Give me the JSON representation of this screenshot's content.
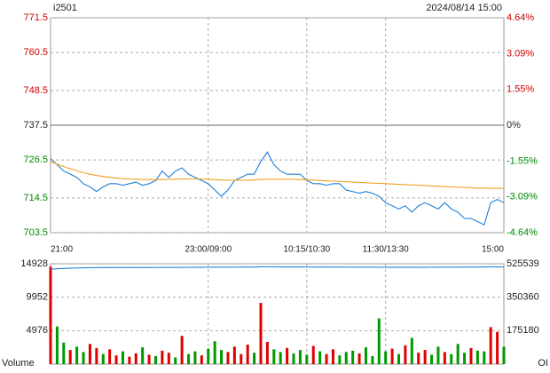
{
  "chart_data": [
    {
      "type": "line",
      "title": "i2501",
      "subtitle": "2024/08/14 15:00",
      "up_color": "#cc0000",
      "down_color": "#008800",
      "grid": true,
      "x": [
        0,
        5,
        10,
        15,
        20,
        25,
        30,
        35,
        40,
        45,
        50,
        55,
        60,
        65,
        70,
        75,
        80,
        85,
        90,
        95,
        100,
        105,
        110,
        115,
        120,
        125,
        130,
        135,
        140,
        145,
        150,
        155,
        160,
        165,
        170,
        175,
        180,
        185,
        190,
        195,
        200,
        205,
        210,
        215,
        220,
        225,
        230,
        235,
        240,
        245,
        250,
        255,
        260,
        265,
        270,
        275,
        280,
        285,
        290,
        295,
        300,
        305,
        310,
        315,
        320,
        325,
        330,
        335,
        340,
        345
      ],
      "xlim": [
        0,
        345
      ],
      "xticks": [
        {
          "value": 0,
          "label": "21:00"
        },
        {
          "value": 120,
          "label": "23:00/09:00"
        },
        {
          "value": 195,
          "label": "10:15/10:30"
        },
        {
          "value": 255,
          "label": "11:30/13:30"
        },
        {
          "value": 345,
          "label": "15:00"
        }
      ],
      "ylim": [
        703.5,
        771.5
      ],
      "yticks": [
        703.5,
        714.5,
        726.5,
        737.5,
        748.5,
        760.5,
        771.5
      ],
      "y2lim": [
        -4.64,
        4.64
      ],
      "y2ticks": [
        {
          "value": -4.64,
          "label": "-4.64%"
        },
        {
          "value": -3.09,
          "label": "-3.09%"
        },
        {
          "value": -1.55,
          "label": "-1.55%"
        },
        {
          "value": 0,
          "label": "0%"
        },
        {
          "value": 1.55,
          "label": "1.55%"
        },
        {
          "value": 3.09,
          "label": "3.09%"
        },
        {
          "value": 4.64,
          "label": "4.64%"
        }
      ],
      "series": [
        {
          "color": "#1e7fd6",
          "values": [
            727,
            725,
            723,
            722,
            721,
            719,
            718,
            716.5,
            718,
            719,
            719,
            718.5,
            719,
            719.5,
            718.5,
            719,
            720,
            723,
            721,
            723,
            724,
            722,
            721,
            720,
            719,
            717,
            715,
            717,
            720,
            721,
            722,
            722,
            726,
            729,
            725,
            723,
            722,
            722,
            722,
            720,
            719,
            719,
            718.5,
            719,
            719,
            717,
            716.5,
            716,
            716.5,
            716,
            715,
            713,
            712,
            711,
            712,
            710,
            712,
            713,
            712,
            711,
            713,
            711,
            710,
            708,
            708,
            707,
            706,
            713,
            714,
            713
          ]
        },
        {
          "color": "#f0a020",
          "values": [
            726,
            725.2,
            724.4,
            723.7,
            723.1,
            722.5,
            722,
            721.6,
            721.3,
            721,
            720.8,
            720.6,
            720.5,
            720.4,
            720.3,
            720.3,
            720.3,
            720.3,
            720.4,
            720.4,
            720.5,
            720.5,
            720.5,
            720.5,
            720.4,
            720.3,
            720.2,
            720.1,
            720.1,
            720.1,
            720.1,
            720.2,
            720.3,
            720.4,
            720.4,
            720.4,
            720.4,
            720.4,
            720.3,
            720.2,
            720.1,
            720,
            719.9,
            719.8,
            719.7,
            719.6,
            719.5,
            719.4,
            719.3,
            719.2,
            719.1,
            719,
            718.9,
            718.8,
            718.7,
            718.6,
            718.5,
            718.4,
            718.3,
            718.2,
            718.1,
            718,
            717.9,
            717.8,
            717.7,
            717.6,
            717.6,
            717.5,
            717.5,
            717.5
          ]
        }
      ]
    },
    {
      "type": "bar",
      "grid": true,
      "x": [
        0,
        5,
        10,
        15,
        20,
        25,
        30,
        35,
        40,
        45,
        50,
        55,
        60,
        65,
        70,
        75,
        80,
        85,
        90,
        95,
        100,
        105,
        110,
        115,
        120,
        125,
        130,
        135,
        140,
        145,
        150,
        155,
        160,
        165,
        170,
        175,
        180,
        185,
        190,
        195,
        200,
        205,
        210,
        215,
        220,
        225,
        230,
        235,
        240,
        245,
        250,
        255,
        260,
        265,
        270,
        275,
        280,
        285,
        290,
        295,
        300,
        305,
        310,
        315,
        320,
        325,
        330,
        335,
        340,
        345
      ],
      "xlim": [
        0,
        345
      ],
      "ylim": [
        0,
        14928
      ],
      "yticks": [
        4976,
        9952,
        14928
      ],
      "y2lim": [
        0,
        525539
      ],
      "y2ticks": [
        175180,
        350360,
        525539
      ],
      "series": [
        {
          "name": "Volume",
          "values": [
            14500,
            5600,
            3200,
            2100,
            2600,
            1800,
            3000,
            2400,
            1500,
            2200,
            1300,
            1900,
            1100,
            1600,
            2500,
            1400,
            1200,
            2000,
            1700,
            1000,
            4200,
            1500,
            1900,
            1300,
            2300,
            3400,
            2100,
            1800,
            2600,
            1500,
            2900,
            1700,
            9100,
            3300,
            2200,
            1800,
            2400,
            1600,
            2100,
            1400,
            2700,
            1900,
            1500,
            2200,
            1300,
            1800,
            2000,
            1600,
            2500,
            1200,
            6800,
            1900,
            2300,
            1500,
            2800,
            3900,
            1700,
            2100,
            1400,
            2600,
            1800,
            1500,
            3000,
            1700,
            2400,
            2000,
            1900,
            5500,
            4800,
            2600
          ],
          "colors": [
            "#e00000",
            "#009900",
            "#009900",
            "#e00000",
            "#009900",
            "#009900",
            "#e00000",
            "#e00000",
            "#009900",
            "#e00000",
            "#e00000",
            "#009900",
            "#e00000",
            "#e00000",
            "#009900",
            "#e00000",
            "#009900",
            "#e00000",
            "#e00000",
            "#009900",
            "#e00000",
            "#009900",
            "#009900",
            "#e00000",
            "#009900",
            "#009900",
            "#009900",
            "#e00000",
            "#e00000",
            "#e00000",
            "#e00000",
            "#009900",
            "#e00000",
            "#e00000",
            "#009900",
            "#009900",
            "#e00000",
            "#009900",
            "#009900",
            "#009900",
            "#e00000",
            "#009900",
            "#e00000",
            "#e00000",
            "#009900",
            "#009900",
            "#009900",
            "#e00000",
            "#009900",
            "#009900",
            "#009900",
            "#009900",
            "#e00000",
            "#009900",
            "#e00000",
            "#009900",
            "#e00000",
            "#e00000",
            "#009900",
            "#009900",
            "#e00000",
            "#009900",
            "#009900",
            "#009900",
            "#e00000",
            "#009900",
            "#009900",
            "#e00000",
            "#e00000",
            "#009900"
          ]
        },
        {
          "name": "OI",
          "type": "line",
          "axis": "y2",
          "color": "#1e7fd6",
          "values": [
            497000,
            499500,
            501000,
            502500,
            503500,
            504200,
            504800,
            505200,
            505500,
            505700,
            505900,
            506000,
            506100,
            506200,
            506300,
            506300,
            506400,
            506500,
            506600,
            506600,
            506800,
            507000,
            507200,
            507400,
            507500,
            507600,
            507800,
            508000,
            508100,
            508200,
            508400,
            508600,
            509500,
            509300,
            509200,
            509100,
            509000,
            508900,
            508800,
            508700,
            508600,
            508500,
            508400,
            508300,
            508200,
            508100,
            508000,
            507900,
            507800,
            507700,
            507500,
            507400,
            507300,
            507300,
            507200,
            507200,
            507300,
            507400,
            507500,
            507600,
            507700,
            507900,
            508000,
            508200,
            508400,
            508600,
            508800,
            509300,
            509100,
            508700
          ]
        }
      ]
    }
  ]
}
